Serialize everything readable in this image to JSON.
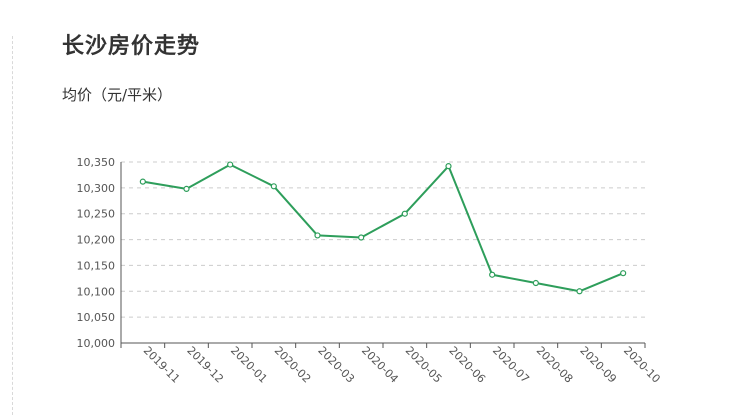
{
  "page": {
    "title": "长沙房价走势",
    "ylabel": "均价（元/平米）"
  },
  "chart_data": {
    "type": "line",
    "title": "长沙房价走势",
    "xlabel": "",
    "ylabel": "均价（元/平米）",
    "categories": [
      "2019-11",
      "2019-12",
      "2020-01",
      "2020-02",
      "2020-03",
      "2020-04",
      "2020-05",
      "2020-06",
      "2020-07",
      "2020-08",
      "2020-09",
      "2020-10"
    ],
    "series": [
      {
        "values": [
          10312,
          10298,
          10345,
          10303,
          10208,
          10204,
          10250,
          10342,
          10132,
          10116,
          10100,
          10135
        ]
      }
    ],
    "ylim": [
      10000,
      10350
    ],
    "yticks": [
      "10,000",
      "10,050",
      "10,100",
      "10,150",
      "10,200",
      "10,250",
      "10,300",
      "10,350"
    ],
    "grid": true,
    "colors": {
      "line": "#2e9e5b",
      "grid": "#cccccc",
      "axis": "#555555"
    }
  }
}
